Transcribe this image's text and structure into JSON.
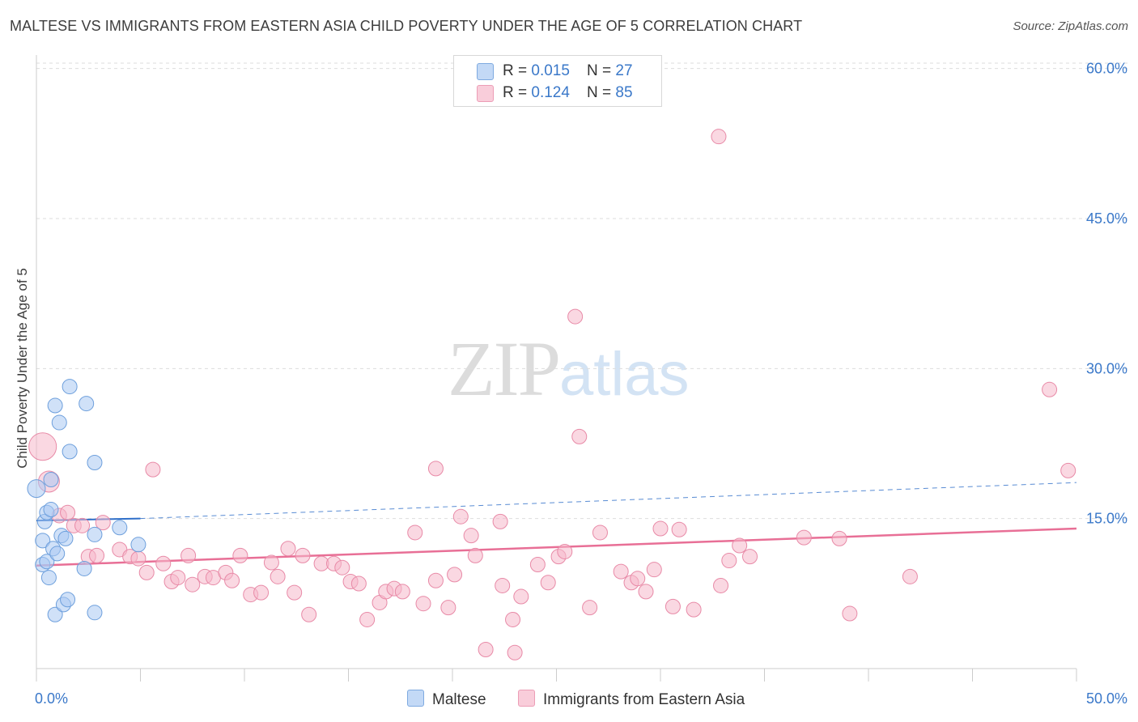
{
  "title": "MALTESE VS IMMIGRANTS FROM EASTERN ASIA CHILD POVERTY UNDER THE AGE OF 5 CORRELATION CHART",
  "source": "Source: ZipAtlas.com",
  "watermark": {
    "zip": "ZIP",
    "atlas": "atlas"
  },
  "legend": {
    "rows": [
      {
        "r_label": "R = ",
        "r_value": "0.015",
        "n_label": "N = ",
        "n_value": "27"
      },
      {
        "r_label": "R = ",
        "r_value": "0.124",
        "n_label": "N = ",
        "n_value": "85"
      }
    ]
  },
  "bottom_legend": [
    "Maltese",
    "Immigrants from Eastern Asia"
  ],
  "colors": {
    "blue_fill": "#a9c9f2",
    "blue_stroke": "#6d9fdc",
    "blue_line": "#2f6fc9",
    "pink_fill": "#f6b8cb",
    "pink_stroke": "#e88aa7",
    "pink_line": "#e86f96",
    "grid": "#dddddd",
    "axis_text": "#3a78c9"
  },
  "chart_data": {
    "type": "scatter",
    "title": "MALTESE VS IMMIGRANTS FROM EASTERN ASIA CHILD POVERTY UNDER THE AGE OF 5 CORRELATION CHART",
    "xlabel": "",
    "ylabel": "Child Poverty Under the Age of 5",
    "xlim": [
      0,
      50
    ],
    "ylim": [
      0,
      62
    ],
    "x_tick_labels": [
      "0.0%",
      "50.0%"
    ],
    "y_ticks": [
      15,
      30,
      45,
      60
    ],
    "y_tick_labels": [
      "15.0%",
      "30.0%",
      "45.0%",
      "60.0%"
    ],
    "grid": true,
    "legend_position": "top-center",
    "series": [
      {
        "name": "Maltese",
        "color": "#a9c9f2",
        "r": 0.015,
        "n": 27,
        "trend": {
          "x": [
            0,
            5
          ],
          "y": [
            14.8,
            15.0
          ],
          "dashed_to": [
            50,
            18.6
          ]
        },
        "points": [
          [
            0.0,
            18.0
          ],
          [
            0.3,
            12.8
          ],
          [
            0.3,
            10.4
          ],
          [
            0.4,
            14.7
          ],
          [
            0.5,
            10.7
          ],
          [
            0.5,
            15.6
          ],
          [
            0.6,
            9.1
          ],
          [
            0.7,
            18.9
          ],
          [
            0.7,
            15.9
          ],
          [
            0.8,
            12.0
          ],
          [
            0.9,
            5.4
          ],
          [
            0.9,
            26.3
          ],
          [
            1.0,
            11.5
          ],
          [
            1.1,
            24.6
          ],
          [
            1.2,
            13.3
          ],
          [
            1.3,
            6.4
          ],
          [
            1.4,
            13.0
          ],
          [
            1.5,
            6.9
          ],
          [
            1.6,
            28.2
          ],
          [
            1.6,
            21.7
          ],
          [
            2.3,
            10.0
          ],
          [
            2.4,
            26.5
          ],
          [
            2.8,
            13.4
          ],
          [
            2.8,
            20.6
          ],
          [
            2.8,
            5.6
          ],
          [
            4.0,
            14.1
          ],
          [
            4.9,
            12.4
          ]
        ]
      },
      {
        "name": "Immigrants from Eastern Asia",
        "color": "#f6b8cb",
        "r": 0.124,
        "n": 85,
        "trend": {
          "x": [
            0,
            50
          ],
          "y": [
            10.3,
            14.0
          ]
        },
        "points": [
          [
            0.3,
            22.2
          ],
          [
            0.6,
            18.7
          ],
          [
            1.1,
            15.3
          ],
          [
            1.5,
            15.6
          ],
          [
            1.8,
            14.3
          ],
          [
            2.2,
            14.3
          ],
          [
            2.5,
            11.2
          ],
          [
            2.9,
            11.3
          ],
          [
            3.2,
            14.6
          ],
          [
            4.0,
            11.9
          ],
          [
            4.5,
            11.2
          ],
          [
            4.9,
            11.0
          ],
          [
            5.3,
            9.6
          ],
          [
            5.6,
            19.9
          ],
          [
            6.1,
            10.5
          ],
          [
            6.5,
            8.7
          ],
          [
            6.8,
            9.1
          ],
          [
            7.3,
            11.3
          ],
          [
            7.5,
            8.4
          ],
          [
            8.1,
            9.2
          ],
          [
            8.5,
            9.1
          ],
          [
            9.1,
            9.6
          ],
          [
            9.4,
            8.8
          ],
          [
            9.8,
            11.3
          ],
          [
            10.3,
            7.4
          ],
          [
            10.8,
            7.6
          ],
          [
            11.3,
            10.6
          ],
          [
            11.6,
            9.2
          ],
          [
            12.1,
            12.0
          ],
          [
            12.4,
            7.6
          ],
          [
            12.8,
            11.3
          ],
          [
            13.1,
            5.4
          ],
          [
            13.7,
            10.5
          ],
          [
            14.3,
            10.5
          ],
          [
            14.7,
            10.1
          ],
          [
            15.1,
            8.7
          ],
          [
            15.5,
            8.5
          ],
          [
            15.9,
            4.9
          ],
          [
            16.5,
            6.6
          ],
          [
            16.8,
            7.7
          ],
          [
            17.2,
            8.0
          ],
          [
            17.6,
            7.7
          ],
          [
            18.2,
            13.6
          ],
          [
            18.6,
            6.5
          ],
          [
            19.2,
            8.8
          ],
          [
            19.8,
            6.1
          ],
          [
            20.1,
            9.4
          ],
          [
            20.4,
            15.2
          ],
          [
            20.9,
            13.3
          ],
          [
            21.1,
            11.3
          ],
          [
            21.6,
            1.9
          ],
          [
            22.3,
            14.7
          ],
          [
            22.4,
            8.3
          ],
          [
            22.9,
            4.9
          ],
          [
            23.0,
            1.6
          ],
          [
            23.3,
            7.2
          ],
          [
            24.1,
            10.4
          ],
          [
            24.6,
            8.6
          ],
          [
            25.1,
            11.2
          ],
          [
            25.4,
            11.7
          ],
          [
            25.9,
            35.2
          ],
          [
            26.1,
            23.2
          ],
          [
            26.6,
            6.1
          ],
          [
            27.1,
            13.6
          ],
          [
            28.1,
            9.7
          ],
          [
            28.6,
            8.6
          ],
          [
            28.9,
            9.0
          ],
          [
            29.3,
            7.7
          ],
          [
            29.7,
            9.9
          ],
          [
            30.0,
            14.0
          ],
          [
            30.6,
            6.2
          ],
          [
            30.9,
            13.9
          ],
          [
            31.6,
            5.9
          ],
          [
            32.8,
            53.2
          ],
          [
            32.9,
            8.3
          ],
          [
            33.3,
            10.8
          ],
          [
            33.8,
            12.3
          ],
          [
            34.3,
            11.2
          ],
          [
            36.9,
            13.1
          ],
          [
            38.6,
            13.0
          ],
          [
            39.1,
            5.5
          ],
          [
            42.0,
            9.2
          ],
          [
            48.7,
            27.9
          ],
          [
            49.6,
            19.8
          ],
          [
            19.2,
            20.0
          ]
        ]
      }
    ]
  }
}
